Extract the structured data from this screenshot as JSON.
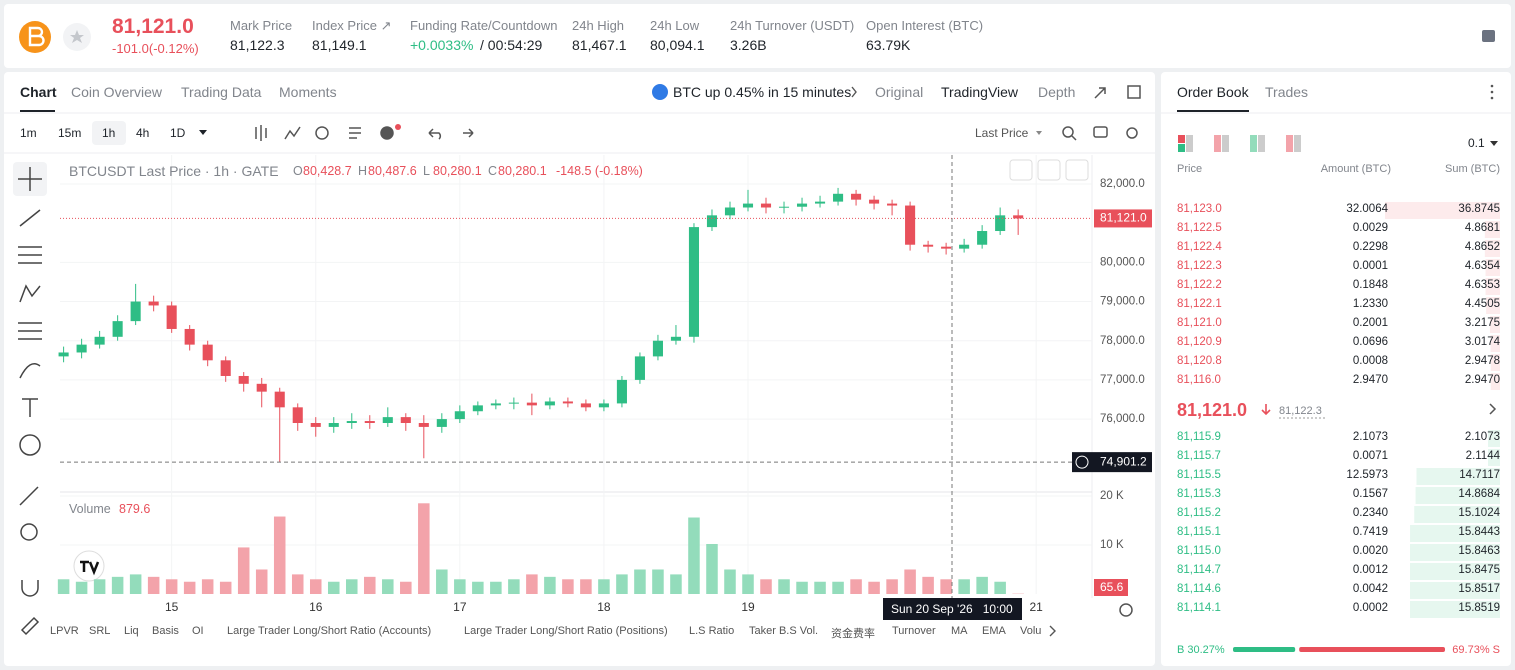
{
  "header": {
    "price": "81,121.0",
    "change": "-101.0(-0.12%)",
    "stats": [
      {
        "label": "Mark Price",
        "value": "81,122.3"
      },
      {
        "label": "Index Price ↗",
        "value": "81,149.1"
      },
      {
        "label": "Funding Rate/Countdown",
        "value": "+0.0033%",
        "value2": "/ 00:54:29"
      },
      {
        "label": "24h High",
        "value": "81,467.1"
      },
      {
        "label": "24h Low",
        "value": "80,094.1"
      },
      {
        "label": "24h Turnover (USDT)",
        "value": "3.26B"
      },
      {
        "label": "Open Interest (BTC)",
        "value": "63.79K"
      }
    ]
  },
  "chart_tabs": [
    "Chart",
    "Coin Overview",
    "Trading Data",
    "Moments"
  ],
  "banner": "BTC up 0.45% in 15 minutes",
  "view_tabs": [
    "Original",
    "TradingView",
    "Depth"
  ],
  "intervals": [
    "1m",
    "15m",
    "1h",
    "4h",
    "1D"
  ],
  "price_type": "Last Price",
  "legend": {
    "symbol": "BTCUSDT Last Price · 1h · GATE",
    "ohlc": [
      [
        "O",
        "80,428.7"
      ],
      [
        "H",
        "80,487.6"
      ],
      [
        "L",
        "80,280.1"
      ],
      [
        "C",
        "80,280.1"
      ]
    ],
    "change": "-148.5 (-0.18%)"
  },
  "volume_legend": {
    "label": "Volume",
    "value": "879.6"
  },
  "crosshair_time": "Sun 20 Sep '26   10:00",
  "indicators": [
    "LPVR",
    "SRL",
    "Liq",
    "Basis",
    "OI",
    "Large Trader Long/Short Ratio (Accounts)",
    "Large Trader Long/Short Ratio (Positions)",
    "L.S Ratio",
    "Taker B.S Vol.",
    "资金费率",
    "Turnover",
    "MA",
    "EMA",
    "Volu"
  ],
  "chart_data": [
    {
      "type": "candlestick",
      "colors": {
        "up": "#2ebd85",
        "down": "#e8505b"
      },
      "grid": true,
      "candles": [
        [
          77600,
          77850,
          77450,
          77700
        ],
        [
          77700,
          78050,
          77550,
          77900
        ],
        [
          77900,
          78250,
          77800,
          78100
        ],
        [
          78100,
          78650,
          78000,
          78500
        ],
        [
          78500,
          79450,
          78400,
          79000
        ],
        [
          79000,
          79150,
          78750,
          78900
        ],
        [
          78900,
          79000,
          78200,
          78300
        ],
        [
          78300,
          78400,
          77750,
          77900
        ],
        [
          77900,
          78000,
          77350,
          77500
        ],
        [
          77500,
          77600,
          76950,
          77100
        ],
        [
          77100,
          77200,
          76700,
          76900
        ],
        [
          76900,
          77050,
          76300,
          76700
        ],
        [
          76700,
          76800,
          74900,
          76300
        ],
        [
          76300,
          76400,
          75700,
          75900
        ],
        [
          75900,
          76050,
          75550,
          75800
        ],
        [
          75800,
          76050,
          75650,
          75900
        ],
        [
          75900,
          76150,
          75750,
          75950
        ],
        [
          75950,
          76100,
          75750,
          75900
        ],
        [
          75900,
          76300,
          75800,
          76050
        ],
        [
          76050,
          76150,
          75700,
          75900
        ],
        [
          75900,
          76100,
          75000,
          75800
        ],
        [
          75800,
          76150,
          75650,
          76000
        ],
        [
          76000,
          76350,
          75900,
          76200
        ],
        [
          76200,
          76450,
          76100,
          76350
        ],
        [
          76350,
          76500,
          76250,
          76400
        ],
        [
          76400,
          76550,
          76250,
          76420
        ],
        [
          76420,
          76650,
          76100,
          76350
        ],
        [
          76350,
          76550,
          76250,
          76450
        ],
        [
          76450,
          76550,
          76300,
          76400
        ],
        [
          76400,
          76500,
          76200,
          76300
        ],
        [
          76300,
          76500,
          76200,
          76400
        ],
        [
          76400,
          77100,
          76300,
          77000
        ],
        [
          77000,
          77700,
          76900,
          77600
        ],
        [
          77600,
          78150,
          77500,
          78000
        ],
        [
          78000,
          78400,
          77900,
          78100
        ],
        [
          78100,
          81000,
          77950,
          80900
        ],
        [
          80900,
          81350,
          80800,
          81200
        ],
        [
          81200,
          81550,
          81100,
          81400
        ],
        [
          81400,
          81850,
          81300,
          81500
        ],
        [
          81500,
          81650,
          81250,
          81400
        ],
        [
          81400,
          81550,
          81250,
          81420
        ],
        [
          81420,
          81650,
          81300,
          81500
        ],
        [
          81500,
          81700,
          81400,
          81550
        ],
        [
          81550,
          81900,
          81450,
          81750
        ],
        [
          81750,
          81850,
          81450,
          81600
        ],
        [
          81600,
          81700,
          81350,
          81500
        ],
        [
          81500,
          81600,
          81200,
          81450
        ],
        [
          81450,
          81550,
          80300,
          80450
        ],
        [
          80450,
          80550,
          80250,
          80400
        ],
        [
          80400,
          80500,
          80200,
          80350
        ],
        [
          80350,
          80600,
          80250,
          80450
        ],
        [
          80450,
          80950,
          80350,
          80800
        ],
        [
          80800,
          81400,
          80700,
          81200
        ],
        [
          81200,
          81350,
          80700,
          81121
        ]
      ],
      "xlim": [
        -0.2,
        57.1
      ],
      "xticks": [
        {
          "value": 6,
          "label": "15"
        },
        {
          "value": 14,
          "label": "16"
        },
        {
          "value": 22,
          "label": "17"
        },
        {
          "value": 30,
          "label": "18"
        },
        {
          "value": 38,
          "label": "19"
        },
        {
          "value": 54,
          "label": "21"
        }
      ],
      "ylim": [
        74190,
        82740
      ],
      "yticks": [
        {
          "value": 76000,
          "label": "76,000.0"
        },
        {
          "value": 77000,
          "label": "77,000.0"
        },
        {
          "value": 78000,
          "label": "78,000.0"
        },
        {
          "value": 79000,
          "label": "79,000.0"
        },
        {
          "value": 80000,
          "label": "80,000.0"
        },
        {
          "value": 82000,
          "label": "82,000.0"
        }
      ],
      "last_price": {
        "value": 81121,
        "label": "81,121.0"
      },
      "crosshair_price": {
        "value": 74901.2,
        "label": "74,901.2"
      }
    },
    {
      "type": "bar",
      "colors": {
        "up": "#93dcbb",
        "down": "#f3a3aa"
      },
      "values": [
        3000,
        2500,
        3000,
        3500,
        4000,
        3500,
        3000,
        2500,
        3000,
        2500,
        9500,
        5000,
        15800,
        4000,
        3000,
        2500,
        3000,
        3500,
        3000,
        2500,
        18500,
        5000,
        3000,
        2500,
        2500,
        3000,
        4000,
        3500,
        3000,
        3000,
        3000,
        4000,
        5000,
        5000,
        4000,
        15600,
        10200,
        5000,
        4000,
        3000,
        3000,
        2500,
        2500,
        2500,
        3000,
        2500,
        3000,
        5000,
        3500,
        3000,
        3000,
        3500,
        2500,
        65.6
      ],
      "ylim": [
        0,
        20600
      ],
      "yticks": [
        {
          "value": 10000,
          "label": "10 K"
        },
        {
          "value": 20000,
          "label": "20 K"
        }
      ]
    }
  ],
  "order_book": {
    "tabs": [
      "Order Book",
      "Trades"
    ],
    "step": "0.1",
    "headers": [
      "Price",
      "Amount (BTC)",
      "Sum (BTC)"
    ],
    "asks": [
      [
        "81,123.0",
        "32.0064",
        "36.8745"
      ],
      [
        "81,122.5",
        "0.0029",
        "4.8681"
      ],
      [
        "81,122.4",
        "0.2298",
        "4.8652"
      ],
      [
        "81,122.3",
        "0.0001",
        "4.6354"
      ],
      [
        "81,122.2",
        "0.1848",
        "4.6353"
      ],
      [
        "81,122.1",
        "1.2330",
        "4.4505"
      ],
      [
        "81,121.0",
        "0.2001",
        "3.2175"
      ],
      [
        "81,120.9",
        "0.0696",
        "3.0174"
      ],
      [
        "81,120.8",
        "0.0008",
        "2.9478"
      ],
      [
        "81,116.0",
        "2.9470",
        "2.9470"
      ]
    ],
    "mid_price": "81,121.0",
    "mark_price": "81,122.3",
    "bids": [
      [
        "81,115.9",
        "2.1073",
        "2.1073"
      ],
      [
        "81,115.7",
        "0.0071",
        "2.1144"
      ],
      [
        "81,115.5",
        "12.5973",
        "14.7117"
      ],
      [
        "81,115.3",
        "0.1567",
        "14.8684"
      ],
      [
        "81,115.2",
        "0.2340",
        "15.1024"
      ],
      [
        "81,115.1",
        "0.7419",
        "15.8443"
      ],
      [
        "81,115.0",
        "0.0020",
        "15.8463"
      ],
      [
        "81,114.7",
        "0.0012",
        "15.8475"
      ],
      [
        "81,114.6",
        "0.0042",
        "15.8517"
      ],
      [
        "81,114.1",
        "0.0002",
        "15.8519"
      ]
    ],
    "buy_ratio": {
      "value": 30.27,
      "label": "B 30.27%"
    },
    "sell_ratio": {
      "value": 69.73,
      "label": "69.73% S"
    }
  }
}
